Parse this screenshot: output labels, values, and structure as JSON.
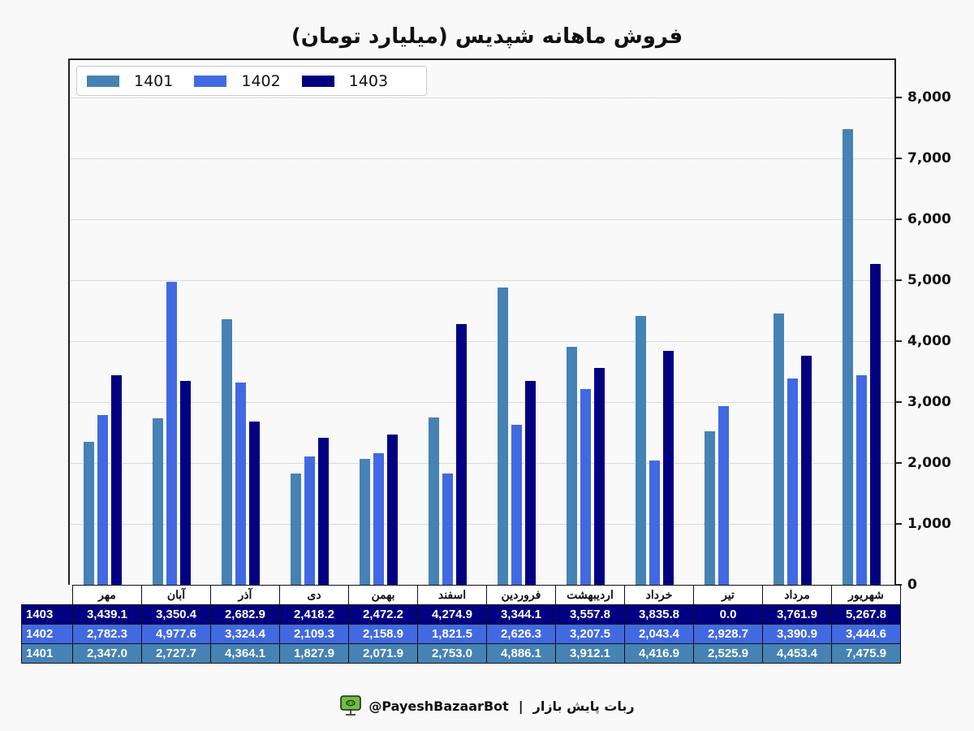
{
  "title": "فروش ماهانه شپدیس (میلیارد تومان)",
  "chart_data": {
    "type": "bar",
    "title": "فروش ماهانه شپدیس (میلیارد تومان)",
    "xlabel": "",
    "ylabel": "",
    "ylim": [
      0,
      8700
    ],
    "yticks": [
      0,
      1000,
      2000,
      3000,
      4000,
      5000,
      6000,
      7000,
      8000
    ],
    "ytick_labels": [
      "0",
      "1,000",
      "2,000",
      "3,000",
      "4,000",
      "5,000",
      "6,000",
      "7,000",
      "8,000"
    ],
    "grid": true,
    "legend_position": "upper left",
    "categories": [
      "مهر",
      "آبان",
      "آذر",
      "دی",
      "بهمن",
      "اسفند",
      "فروردین",
      "اردیبهشت",
      "خرداد",
      "تیر",
      "مرداد",
      "شهریور"
    ],
    "series": [
      {
        "name": "1401",
        "color": "#4682b4",
        "values": [
          2347.0,
          2727.7,
          4364.1,
          1827.9,
          2071.9,
          2753.0,
          4886.1,
          3912.1,
          4416.9,
          2525.9,
          4453.4,
          7475.9
        ]
      },
      {
        "name": "1402",
        "color": "#4169e1",
        "values": [
          2782.3,
          4977.6,
          3324.4,
          2109.3,
          2158.9,
          1821.5,
          2626.3,
          3207.5,
          2043.4,
          2928.7,
          3390.9,
          3444.6
        ]
      },
      {
        "name": "1403",
        "color": "#000080",
        "values": [
          3439.1,
          3350.4,
          2682.9,
          2418.2,
          2472.2,
          4274.9,
          3344.1,
          3557.8,
          3835.8,
          0.0,
          3761.9,
          5267.8
        ]
      }
    ]
  },
  "table": {
    "rows": [
      {
        "label": "1403",
        "color": "#000080",
        "cells": [
          "3,439.1",
          "3,350.4",
          "2,682.9",
          "2,418.2",
          "2,472.2",
          "4,274.9",
          "3,344.1",
          "3,557.8",
          "3,835.8",
          "0.0",
          "3,761.9",
          "5,267.8"
        ]
      },
      {
        "label": "1402",
        "color": "#4169e1",
        "cells": [
          "2,782.3",
          "4,977.6",
          "3,324.4",
          "2,109.3",
          "2,158.9",
          "1,821.5",
          "2,626.3",
          "3,207.5",
          "2,043.4",
          "2,928.7",
          "3,390.9",
          "3,444.6"
        ]
      },
      {
        "label": "1401",
        "color": "#4682b4",
        "cells": [
          "2,347.0",
          "2,727.7",
          "4,364.1",
          "1,827.9",
          "2,071.9",
          "2,753.0",
          "4,886.1",
          "3,912.1",
          "4,416.9",
          "2,525.9",
          "4,453.4",
          "7,475.9"
        ]
      }
    ]
  },
  "footer": {
    "icon": "monitor-bot-icon",
    "handle": "@PayeshBazaarBot",
    "separator": "|",
    "bot_name": "ربات پایش بازار"
  }
}
